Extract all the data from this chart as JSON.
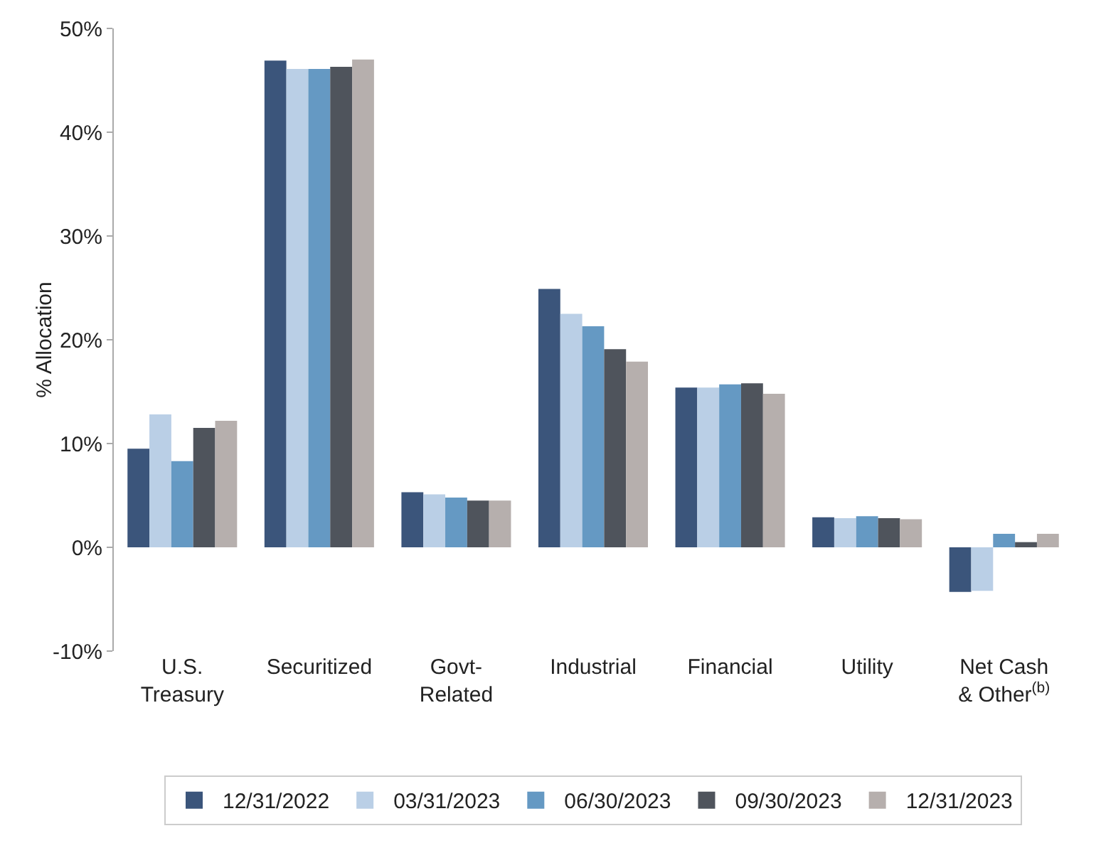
{
  "chart_data": {
    "type": "bar",
    "ylabel": "% Allocation",
    "categories": [
      "U.S.\nTreasury",
      "Securitized",
      "Govt-\nRelated",
      "Industrial",
      "Financial",
      "Utility",
      "Net Cash\n& Other$^{(b)}$"
    ],
    "series": [
      {
        "name": "12/31/2022",
        "color": "#3b557b",
        "values": [
          9.5,
          46.9,
          5.3,
          24.9,
          15.4,
          2.9,
          -4.3
        ]
      },
      {
        "name": "03/31/2023",
        "color": "#bacfe6",
        "values": [
          12.8,
          46.1,
          5.1,
          22.5,
          15.4,
          2.8,
          -4.2
        ]
      },
      {
        "name": "06/30/2023",
        "color": "#6599c3",
        "values": [
          8.3,
          46.1,
          4.8,
          21.3,
          15.7,
          3.0,
          1.3
        ]
      },
      {
        "name": "09/30/2023",
        "color": "#4f545c",
        "values": [
          11.5,
          46.3,
          4.5,
          19.1,
          15.8,
          2.8,
          0.5
        ]
      },
      {
        "name": "12/31/2023",
        "color": "#b6afad",
        "values": [
          12.2,
          47.0,
          4.5,
          17.9,
          14.8,
          2.7,
          1.3
        ]
      }
    ],
    "ylim": [
      -10,
      50
    ],
    "yticks": [
      {
        "value": -10,
        "label": "-10%"
      },
      {
        "value": 0,
        "label": "0%"
      },
      {
        "value": 10,
        "label": "10%"
      },
      {
        "value": 20,
        "label": "20%"
      },
      {
        "value": 30,
        "label": "30%"
      },
      {
        "value": 40,
        "label": "40%"
      },
      {
        "value": 50,
        "label": "50%"
      }
    ],
    "grid": false,
    "legend": "bottom"
  }
}
